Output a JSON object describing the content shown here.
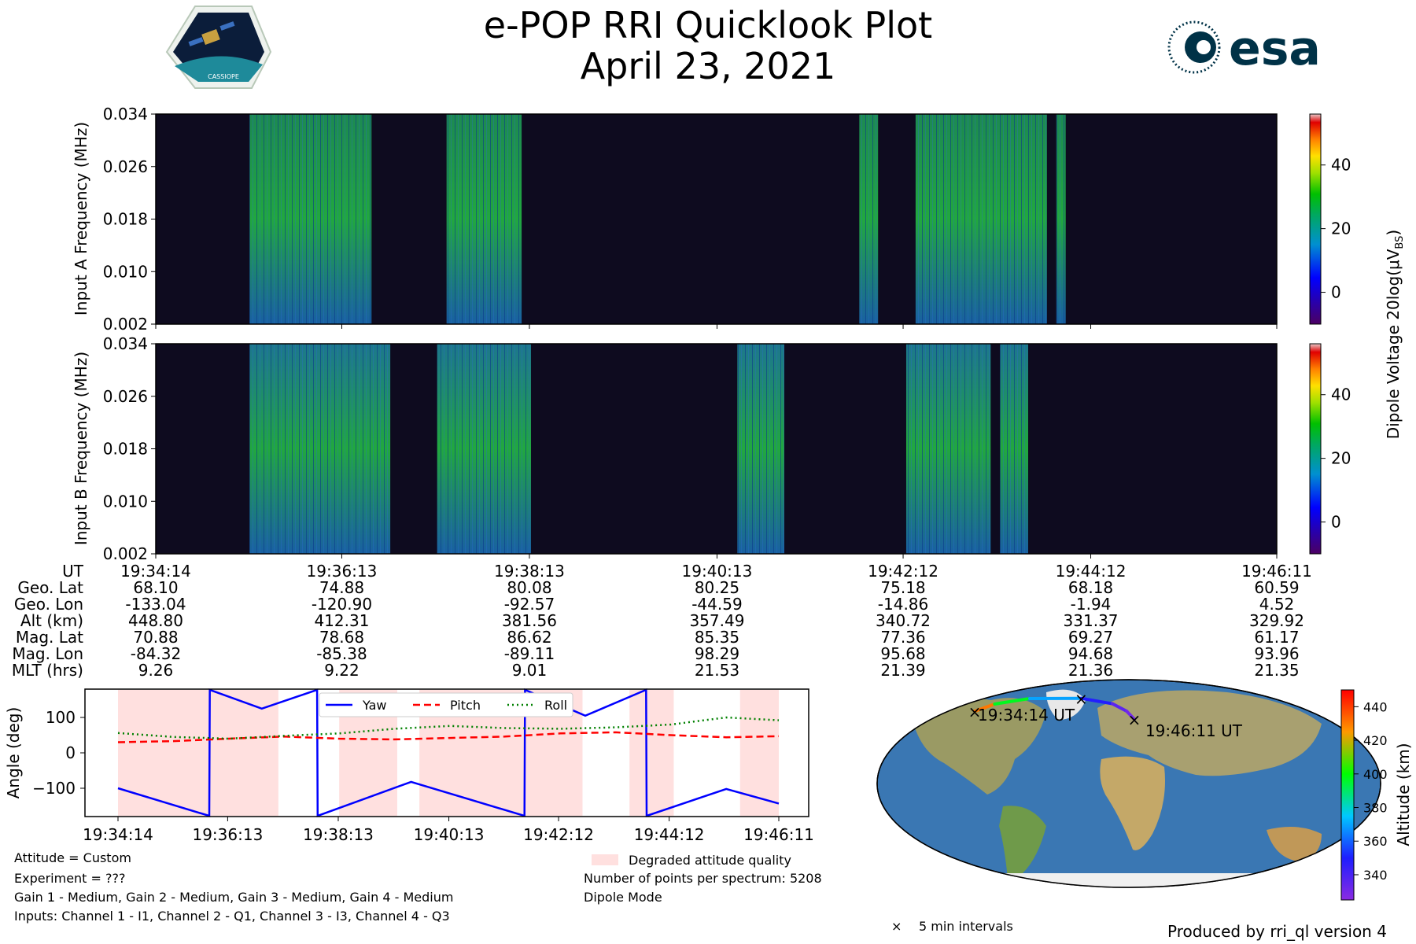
{
  "header": {
    "title": "e-POP RRI Quicklook Plot",
    "date": "April 23, 2021",
    "mission_logo_text": "CASSIOPE",
    "agency_logo_text": "esa"
  },
  "colors": {
    "spectrogram_background": "#0a0a0a",
    "yaw": "#0000ff",
    "pitch": "#ff0000",
    "roll": "#008000",
    "degraded": "#ffe0df",
    "esa_brand": "#003247"
  },
  "chart_data": [
    {
      "type": "heatmap",
      "name": "input_a_spectrogram",
      "ylabel": "Input A Frequency (MHz)",
      "y_ticks": [
        "0.034",
        "0.026",
        "0.018",
        "0.010",
        "0.002"
      ],
      "ylim": [
        0.002,
        0.034
      ],
      "active_bands_minutes": [
        [
          1.0,
          2.3
        ],
        [
          3.1,
          3.9
        ],
        [
          7.5,
          7.7
        ],
        [
          8.1,
          8.6
        ],
        [
          8.6,
          9.5
        ],
        [
          9.6,
          9.7
        ]
      ]
    },
    {
      "type": "heatmap",
      "name": "input_b_spectrogram",
      "ylabel": "Input B Frequency (MHz)",
      "y_ticks": [
        "0.034",
        "0.026",
        "0.018",
        "0.010",
        "0.002"
      ],
      "ylim": [
        0.002,
        0.034
      ],
      "active_bands_minutes": [
        [
          1.0,
          2.5
        ],
        [
          3.0,
          4.0
        ],
        [
          6.2,
          6.7
        ],
        [
          8.0,
          8.9
        ],
        [
          9.0,
          9.3
        ]
      ]
    },
    {
      "type": "colorbar",
      "label": "Dipole Voltage 20log(μV",
      "label_sub": "BS",
      "label_end": ")",
      "ticks": [
        "0",
        "20",
        "40"
      ],
      "range": [
        -10,
        56
      ]
    },
    {
      "type": "table",
      "name": "ephemeris",
      "rows": [
        {
          "label": "UT",
          "values": [
            "19:34:14",
            "19:36:13",
            "19:38:13",
            "19:40:13",
            "19:42:12",
            "19:44:12",
            "19:46:11"
          ]
        },
        {
          "label": "Geo. Lat",
          "values": [
            "68.10",
            "74.88",
            "80.08",
            "80.25",
            "75.18",
            "68.18",
            "60.59"
          ]
        },
        {
          "label": "Geo. Lon",
          "values": [
            "-133.04",
            "-120.90",
            "-92.57",
            "-44.59",
            "-14.86",
            "-1.94",
            "4.52"
          ]
        },
        {
          "label": "Alt (km)",
          "values": [
            "448.80",
            "412.31",
            "381.56",
            "357.49",
            "340.72",
            "331.37",
            "329.92"
          ]
        },
        {
          "label": "Mag. Lat",
          "values": [
            "70.88",
            "78.68",
            "86.62",
            "85.35",
            "77.36",
            "69.27",
            "61.17"
          ]
        },
        {
          "label": "Mag. Lon",
          "values": [
            "-84.32",
            "-85.38",
            "-89.11",
            "98.29",
            "95.68",
            "94.68",
            "93.96"
          ]
        },
        {
          "label": "MLT (hrs)",
          "values": [
            "9.26",
            "9.22",
            "9.01",
            "21.53",
            "21.39",
            "21.36",
            "21.35"
          ]
        }
      ]
    },
    {
      "type": "line",
      "name": "attitude",
      "ylabel": "Angle (deg)",
      "ylim": [
        -180,
        180
      ],
      "y_ticks": [
        100,
        0,
        -100
      ],
      "y_tick_labels": [
        "100",
        "0",
        "−100"
      ],
      "x_range_minutes": [
        0,
        11.95
      ],
      "x_ticks_minutes": [
        0,
        1.983,
        3.983,
        5.983,
        7.967,
        9.967,
        11.95
      ],
      "x_tick_labels": [
        "19:34:14",
        "19:36:13",
        "19:38:13",
        "19:40:13",
        "19:42:12",
        "19:44:12",
        "19:46:11"
      ],
      "series": [
        {
          "name": "Yaw",
          "style": "solid",
          "x": [
            0,
            1.65,
            1.66,
            2.6,
            3.6,
            3.61,
            5.3,
            7.35,
            7.36,
            8.45,
            9.55,
            9.56,
            11.0,
            11.95
          ],
          "y": [
            -100,
            -178,
            178,
            125,
            178,
            -178,
            -82,
            -178,
            178,
            105,
            178,
            -178,
            -102,
            -143
          ]
        },
        {
          "name": "Pitch",
          "style": "dashed",
          "x": [
            0,
            1.0,
            2.0,
            3.0,
            4.0,
            5.0,
            6.0,
            7.0,
            8.0,
            9.0,
            10.0,
            11.0,
            11.95
          ],
          "y": [
            30,
            33,
            40,
            46,
            40,
            38,
            42,
            46,
            55,
            58,
            50,
            44,
            47
          ]
        },
        {
          "name": "Roll",
          "style": "dotted",
          "x": [
            0,
            1.0,
            2.0,
            3.0,
            4.0,
            5.0,
            6.0,
            7.0,
            8.0,
            9.0,
            10.0,
            11.0,
            11.95
          ],
          "y": [
            56,
            45,
            40,
            48,
            55,
            68,
            76,
            70,
            68,
            72,
            80,
            100,
            92
          ]
        }
      ],
      "degraded_intervals_minutes": [
        [
          0,
          2.9
        ],
        [
          4.0,
          5.05
        ],
        [
          5.45,
          8.4
        ],
        [
          9.25,
          10.05
        ],
        [
          11.25,
          11.95
        ]
      ],
      "legend_position": "top-center"
    },
    {
      "type": "map",
      "name": "ground_track",
      "start_label": "19:34:14 UT",
      "end_label": "19:46:11 UT",
      "track_lon": [
        -133.04,
        -120.9,
        -92.57,
        -44.59,
        -14.86,
        -1.94,
        4.52
      ],
      "track_lat": [
        68.1,
        74.88,
        80.08,
        80.25,
        75.18,
        68.18,
        60.59
      ],
      "track_alt_km": [
        448.8,
        412.31,
        381.56,
        357.49,
        340.72,
        331.37,
        329.92
      ],
      "colorbar_label": "Altitude (km)",
      "colorbar_ticks": [
        340,
        360,
        380,
        400,
        420,
        440
      ],
      "colorbar_range": [
        325,
        450
      ],
      "marker_legend": "5 min intervals"
    }
  ],
  "notes": {
    "attitude": "Attitude = Custom",
    "experiment": "Experiment = ???",
    "gains": "Gain 1 - Medium, Gain 2 - Medium, Gain 3 - Medium, Gain 4 - Medium",
    "inputs": "Inputs: Channel 1 - I1, Channel 2 - Q1, Channel 3 - I3, Channel 4 - Q3",
    "degraded_legend": "Degraded attitude quality",
    "points": "Number of points per spectrum: 5208",
    "mode": "Dipole Mode",
    "produced_by": "Produced by rri_ql version 4"
  }
}
